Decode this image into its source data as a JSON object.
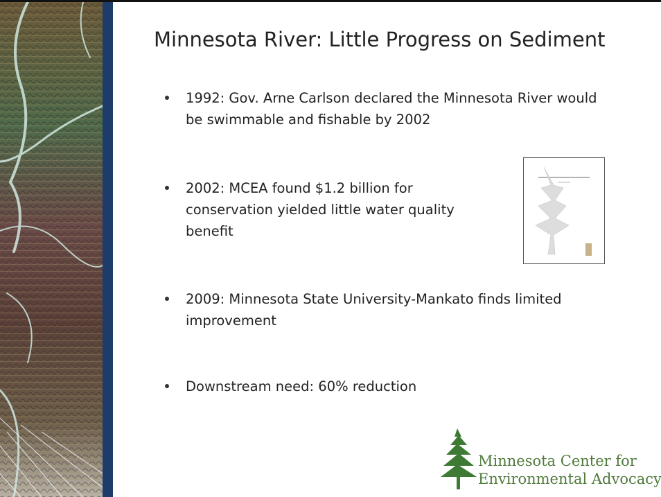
{
  "slide": {
    "title": "Minnesota River: Little Progress on Sediment",
    "bullets": [
      "1992: Gov. Arne Carlson declared the Minnesota River would be swimmable and fishable by 2002",
      "2002: MCEA found $1.2 billion for conservation yielded little water quality benefit",
      "2009: Minnesota State University-Mankato finds limited improvement",
      "Downstream need: 60% reduction"
    ],
    "logo": {
      "lines": [
        "Minnesota Center for",
        "Environmental Advocacy"
      ]
    }
  }
}
